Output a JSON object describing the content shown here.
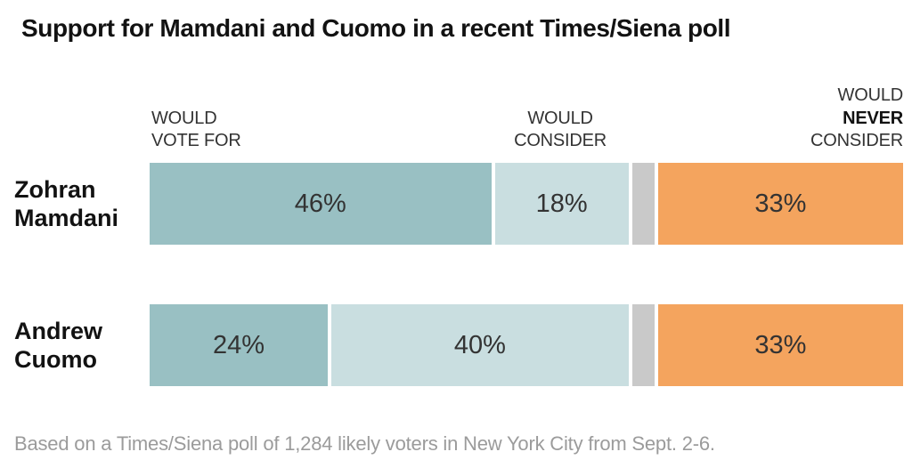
{
  "title": "Support for Mamdani and Cuomo in a recent Times/Siena poll",
  "headers": {
    "col1_line1": "WOULD",
    "col1_line2": "VOTE FOR",
    "col2_line1": "WOULD",
    "col2_line2": "CONSIDER",
    "col3_line1": "WOULD",
    "col3_line2": "NEVER",
    "col3_line3": "CONSIDER"
  },
  "rows": [
    {
      "name_line1": "Zohran",
      "name_line2": "Mamdani"
    },
    {
      "name_line1": "Andrew",
      "name_line2": "Cuomo"
    }
  ],
  "footnote": "Based on a Times/Siena poll of 1,284 likely voters in New York City from Sept. 2-6.",
  "colors": {
    "vote_for": "#99c0c3",
    "consider": "#c9dee0",
    "unlabeled_gray": "#c9c9c9",
    "never_consider": "#f4a45e",
    "title_text": "#121212",
    "header_text": "#333333",
    "footnote_text": "#9b9b9b"
  },
  "chart_data": {
    "type": "bar",
    "orientation": "horizontal",
    "stacked": true,
    "title": "Support for Mamdani and Cuomo in a recent Times/Siena poll",
    "categories": [
      "Zohran Mamdani",
      "Andrew Cuomo"
    ],
    "series": [
      {
        "name": "Would vote for",
        "color": "#99c0c3",
        "values": [
          46,
          24
        ],
        "labels": [
          "46%",
          "24%"
        ]
      },
      {
        "name": "Would consider",
        "color": "#c9dee0",
        "values": [
          18,
          40
        ],
        "labels": [
          "18%",
          "40%"
        ]
      },
      {
        "name": "",
        "color": "#c9c9c9",
        "values": [
          3,
          3
        ],
        "labels": [
          "",
          ""
        ]
      },
      {
        "name": "Would never consider",
        "color": "#f4a45e",
        "values": [
          33,
          33
        ],
        "labels": [
          "33%",
          "33%"
        ]
      }
    ],
    "xlim": [
      0,
      100
    ],
    "grid": false,
    "legend_position": "column headers above bars",
    "footnote": "Based on a Times/Siena poll of 1,284 likely voters in New York City from Sept. 2-6."
  }
}
